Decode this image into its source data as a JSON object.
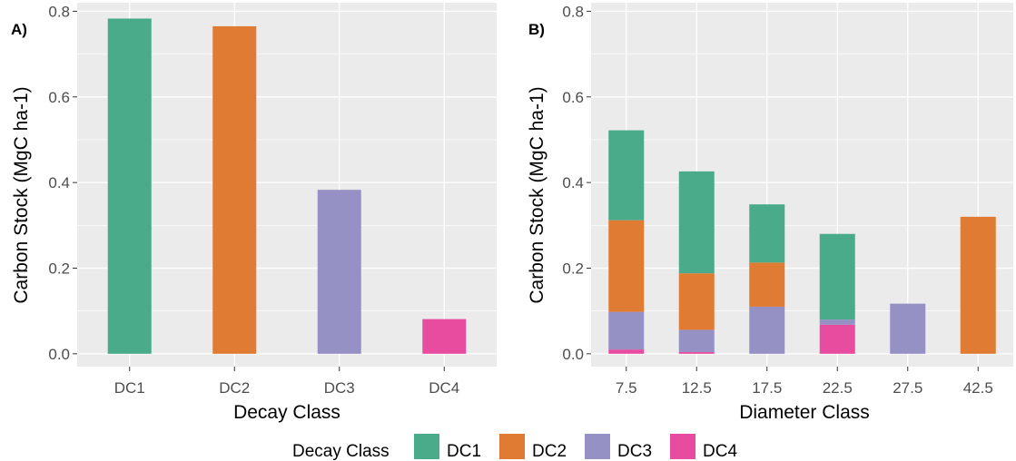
{
  "colors": {
    "DC1": "#4aab8a",
    "DC2": "#e07b34",
    "DC3": "#9591c4",
    "DC4": "#e84c9f",
    "panel_bg": "#ebebeb",
    "grid": "#ffffff"
  },
  "legend": {
    "title": "Decay Class",
    "items": [
      {
        "label": "DC1",
        "color_key": "DC1"
      },
      {
        "label": "DC2",
        "color_key": "DC2"
      },
      {
        "label": "DC3",
        "color_key": "DC3"
      },
      {
        "label": "DC4",
        "color_key": "DC4"
      }
    ],
    "placement": "bottom"
  },
  "chart_data": [
    {
      "panel_tag": "A)",
      "type": "bar",
      "categories": [
        "DC1",
        "DC2",
        "DC3",
        "DC4"
      ],
      "values": [
        0.783,
        0.765,
        0.383,
        0.081
      ],
      "bar_colors": [
        "DC1",
        "DC2",
        "DC3",
        "DC4"
      ],
      "xlabel": "Decay Class",
      "ylabel": "Carbon Stock (MgC ha-1)",
      "ylim": [
        -0.03,
        0.82
      ],
      "yticks": [
        "0.0",
        "0.2",
        "0.4",
        "0.6",
        "0.8"
      ],
      "grid": true
    },
    {
      "panel_tag": "B)",
      "type": "bar",
      "stacked": true,
      "categories": [
        "7.5",
        "12.5",
        "17.5",
        "22.5",
        "27.5",
        "42.5"
      ],
      "series": [
        {
          "name": "DC4",
          "values": [
            0.01,
            0.004,
            0.0,
            0.068,
            0.0,
            0.0
          ]
        },
        {
          "name": "DC3",
          "values": [
            0.088,
            0.052,
            0.11,
            0.012,
            0.117,
            0.0
          ]
        },
        {
          "name": "DC2",
          "values": [
            0.214,
            0.132,
            0.103,
            0.0,
            0.0,
            0.32
          ]
        },
        {
          "name": "DC1",
          "values": [
            0.21,
            0.238,
            0.136,
            0.2,
            0.0,
            0.0
          ]
        }
      ],
      "xlabel": "Diameter Class",
      "ylabel": "Carbon Stock (MgC ha-1)",
      "ylim": [
        -0.03,
        0.82
      ],
      "yticks": [
        "0.0",
        "0.2",
        "0.4",
        "0.6",
        "0.8"
      ],
      "grid": true
    }
  ]
}
